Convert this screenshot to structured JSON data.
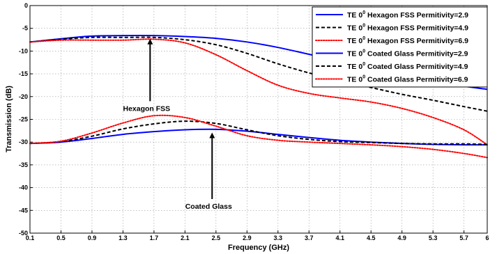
{
  "chart_data": {
    "type": "line",
    "xlabel": "Frequency (GHz)",
    "ylabel": "Transmission (dB)",
    "xlim": [
      0.1,
      6
    ],
    "ylim": [
      -50,
      0
    ],
    "xticks": [
      0.1,
      0.5,
      0.9,
      1.3,
      1.7,
      2.1,
      2.5,
      2.9,
      3.3,
      3.7,
      4.1,
      4.5,
      4.9,
      5.3,
      5.7,
      6
    ],
    "xtick_labels": [
      "0.1",
      "0.5",
      "0.9",
      "1.3",
      "1.7",
      "2.1",
      "2.5",
      "2.9",
      "3.3",
      "3.7",
      "4.1",
      "4.5",
      "4.9",
      "5.3",
      "5.7",
      "6"
    ],
    "yticks": [
      0,
      -5,
      -10,
      -15,
      -20,
      -25,
      -30,
      -35,
      -40,
      -45,
      -50
    ],
    "ytick_labels": [
      "0",
      "-5",
      "-10",
      "-15",
      "-20",
      "-25",
      "-30",
      "-35",
      "-40",
      "-45",
      "-50"
    ],
    "grid": true,
    "legend_position": "top-right",
    "series": [
      {
        "name": "TE 0^0 Hexagon FSS Permitivity=2.9",
        "legend_parts": [
          "TE 0",
          "0",
          " Hexagon FSS Permitivity=2.9"
        ],
        "color": "#0000ff",
        "dash": "solid",
        "x": [
          0.1,
          0.5,
          0.9,
          1.3,
          1.7,
          2.1,
          2.5,
          2.9,
          3.3,
          3.7,
          4.1,
          4.5,
          4.9,
          5.3,
          5.7,
          6
        ],
        "y": [
          -8.0,
          -7.3,
          -6.7,
          -6.6,
          -6.6,
          -6.8,
          -7.2,
          -8.0,
          -9.2,
          -10.7,
          -12.2,
          -13.7,
          -15.2,
          -16.5,
          -17.7,
          -18.4
        ]
      },
      {
        "name": "TE 0^0 Hexagon FSS Permitivity=4.9",
        "legend_parts": [
          "TE 0",
          "0",
          " Hexagon FSS Permitivity=4.9"
        ],
        "color": "#000000",
        "dash": "dashed",
        "x": [
          0.1,
          0.5,
          0.9,
          1.3,
          1.7,
          2.1,
          2.5,
          2.9,
          3.3,
          3.7,
          4.1,
          4.5,
          4.9,
          5.3,
          5.7,
          6
        ],
        "y": [
          -8.0,
          -7.4,
          -7.0,
          -7.0,
          -7.0,
          -7.5,
          -8.6,
          -10.5,
          -12.8,
          -14.8,
          -16.5,
          -18.0,
          -19.5,
          -20.8,
          -22.2,
          -23.2
        ]
      },
      {
        "name": "TE 0^0 Hexagon FSS Permitivity=6.9",
        "legend_parts": [
          "TE 0",
          "0",
          " Hexagon FSS Permitivity=6.9"
        ],
        "color": "#ff0000",
        "dash": "dotted",
        "x": [
          0.1,
          0.5,
          0.9,
          1.3,
          1.7,
          2.1,
          2.5,
          2.9,
          3.3,
          3.7,
          4.1,
          4.5,
          4.9,
          5.3,
          5.7,
          6
        ],
        "y": [
          -8.0,
          -7.6,
          -7.6,
          -7.6,
          -7.4,
          -8.2,
          -10.8,
          -14.3,
          -17.5,
          -19.3,
          -20.3,
          -21.2,
          -22.6,
          -24.6,
          -27.3,
          -30.6
        ]
      },
      {
        "name": "TE 0^0 Coated Glass Permitivity=2.9",
        "legend_parts": [
          "TE 0",
          "0",
          " Coated Glass Permitivity=2.9"
        ],
        "color": "#0000ff",
        "dash": "solid",
        "x": [
          0.1,
          0.5,
          0.9,
          1.3,
          1.7,
          2.1,
          2.5,
          2.9,
          3.3,
          3.7,
          4.1,
          4.5,
          4.9,
          5.3,
          5.7,
          6
        ],
        "y": [
          -30.3,
          -30.0,
          -29.2,
          -28.3,
          -27.7,
          -27.3,
          -27.2,
          -27.6,
          -28.3,
          -29.0,
          -29.6,
          -30.0,
          -30.3,
          -30.5,
          -30.6,
          -30.6
        ]
      },
      {
        "name": "TE 0^0 Coated Glass Permitivity=4.9",
        "legend_parts": [
          "TE 0",
          "0",
          " Coated Glass Permitivity=4.9"
        ],
        "color": "#000000",
        "dash": "dashed",
        "x": [
          0.1,
          0.5,
          0.9,
          1.3,
          1.7,
          2.1,
          2.5,
          2.9,
          3.3,
          3.7,
          4.1,
          4.5,
          4.9,
          5.3,
          5.7,
          6
        ],
        "y": [
          -30.3,
          -29.9,
          -28.7,
          -27.1,
          -26.0,
          -25.4,
          -25.9,
          -27.3,
          -28.6,
          -29.4,
          -29.9,
          -30.1,
          -30.3,
          -30.4,
          -30.4,
          -30.5
        ]
      },
      {
        "name": "TE 0^0 Coated Glass Permitivity=6.9",
        "legend_parts": [
          "TE 0",
          "0",
          " Coated Glass Permitivity=6.9"
        ],
        "color": "#ff0000",
        "dash": "dotted",
        "x": [
          0.1,
          0.5,
          0.9,
          1.3,
          1.7,
          2.1,
          2.5,
          2.9,
          3.3,
          3.7,
          4.1,
          4.5,
          4.9,
          5.3,
          5.7,
          6
        ],
        "y": [
          -30.3,
          -29.8,
          -28.0,
          -25.8,
          -24.2,
          -24.6,
          -26.5,
          -28.6,
          -29.6,
          -30.0,
          -30.3,
          -30.6,
          -31.0,
          -31.6,
          -32.5,
          -33.4
        ]
      }
    ],
    "annotations": [
      {
        "text": "Hexagon FSS",
        "arrow_from": [
          1.65,
          -21.0
        ],
        "arrow_to": [
          1.65,
          -7.0
        ]
      },
      {
        "text": "Coated Glass",
        "arrow_from": [
          2.45,
          -42.5
        ],
        "arrow_to": [
          2.45,
          -27.6
        ]
      }
    ]
  }
}
